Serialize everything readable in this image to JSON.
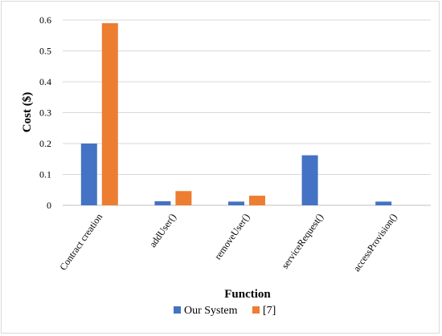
{
  "chart_data": {
    "type": "bar",
    "title": "",
    "xlabel": "Function",
    "ylabel": "Cost ($)",
    "categories": [
      "Contract creation",
      "addUser()",
      "removeUser()",
      "serviceRequest()",
      "accessProvision()"
    ],
    "series": [
      {
        "name": "Our System",
        "color": "#4472C4",
        "values": [
          0.2,
          0.013,
          0.012,
          0.162,
          0.012
        ]
      },
      {
        "name": "[7]",
        "color": "#ED7D31",
        "values": [
          0.59,
          0.046,
          0.031,
          0,
          0
        ]
      }
    ],
    "ylim": [
      0,
      0.6
    ],
    "yticks": [
      "0",
      "0.1",
      "0.2",
      "0.3",
      "0.4",
      "0.5",
      "0.6"
    ],
    "grid": true,
    "legend": "bottom"
  }
}
